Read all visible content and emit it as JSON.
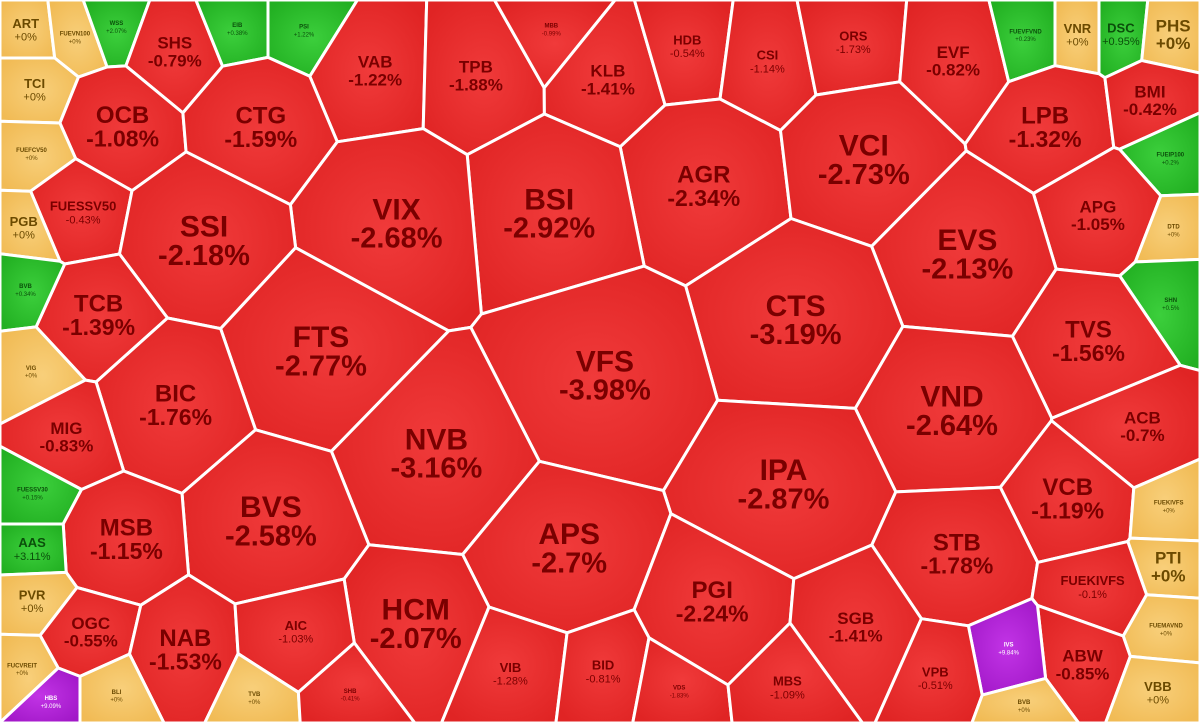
{
  "chart_data": {
    "type": "heatmap",
    "title": "",
    "colors": {
      "down": "#e82b2b",
      "down_text": "#7a0000",
      "flat": "#f5c565",
      "flat_text": "#6b4a00",
      "up": "#2bc22b",
      "up_text": "#0b4f0b",
      "ceiling": "#b41fd9",
      "ceiling_text": "#ffffff"
    },
    "cells": [
      {
        "ticker": "ART",
        "change": "+0%",
        "value": 0,
        "status": "flat",
        "size": "s"
      },
      {
        "ticker": "FUEVN100",
        "change": "+0%",
        "value": 0,
        "status": "flat",
        "size": "xs"
      },
      {
        "ticker": "WSS",
        "change": "+2.07%",
        "value": 2.07,
        "status": "up",
        "size": "xs"
      },
      {
        "ticker": "SHS",
        "change": "-0.79%",
        "value": -0.79,
        "status": "down",
        "size": "m"
      },
      {
        "ticker": "EIB",
        "change": "+0.38%",
        "value": 0.38,
        "status": "up",
        "size": "xs"
      },
      {
        "ticker": "PSI",
        "change": "+1.22%",
        "value": 1.22,
        "status": "up",
        "size": "xs"
      },
      {
        "ticker": "VAB",
        "change": "-1.22%",
        "value": -1.22,
        "status": "down",
        "size": "m"
      },
      {
        "ticker": "TPB",
        "change": "-1.88%",
        "value": -1.88,
        "status": "down",
        "size": "m"
      },
      {
        "ticker": "MBB",
        "change": "-0.99%",
        "value": -0.99,
        "status": "down",
        "size": "xs"
      },
      {
        "ticker": "KLB",
        "change": "-1.41%",
        "value": -1.41,
        "status": "down",
        "size": "m"
      },
      {
        "ticker": "HDB",
        "change": "-0.54%",
        "value": -0.54,
        "status": "down",
        "size": "s"
      },
      {
        "ticker": "CSI",
        "change": "-1.14%",
        "value": -1.14,
        "status": "down",
        "size": "s"
      },
      {
        "ticker": "ORS",
        "change": "-1.73%",
        "value": -1.73,
        "status": "down",
        "size": "s"
      },
      {
        "ticker": "EVF",
        "change": "-0.82%",
        "value": -0.82,
        "status": "down",
        "size": "m"
      },
      {
        "ticker": "FUEVFVND",
        "change": "+0.23%",
        "value": 0.23,
        "status": "up",
        "size": "xs"
      },
      {
        "ticker": "VNR",
        "change": "+0%",
        "value": 0,
        "status": "flat",
        "size": "s"
      },
      {
        "ticker": "DSC",
        "change": "+0.95%",
        "value": 0.95,
        "status": "up",
        "size": "s"
      },
      {
        "ticker": "PHS",
        "change": "+0%",
        "value": 0,
        "status": "flat",
        "size": "m"
      },
      {
        "ticker": "TCI",
        "change": "+0%",
        "value": 0,
        "status": "flat",
        "size": "s"
      },
      {
        "ticker": "OCB",
        "change": "-1.08%",
        "value": -1.08,
        "status": "down",
        "size": "l"
      },
      {
        "ticker": "CTG",
        "change": "-1.59%",
        "value": -1.59,
        "status": "down",
        "size": "l"
      },
      {
        "ticker": "AGR",
        "change": "-2.34%",
        "value": -2.34,
        "status": "down",
        "size": "l"
      },
      {
        "ticker": "VCI",
        "change": "-2.73%",
        "value": -2.73,
        "status": "down",
        "size": "xl"
      },
      {
        "ticker": "LPB",
        "change": "-1.32%",
        "value": -1.32,
        "status": "down",
        "size": "l"
      },
      {
        "ticker": "BMI",
        "change": "-0.42%",
        "value": -0.42,
        "status": "down",
        "size": "m"
      },
      {
        "ticker": "FUEFCV50",
        "change": "+0%",
        "value": 0,
        "status": "flat",
        "size": "xs"
      },
      {
        "ticker": "BSI",
        "change": "-2.92%",
        "value": -2.92,
        "status": "down",
        "size": "xl"
      },
      {
        "ticker": "FUEIP100",
        "change": "+0.2%",
        "value": 0.2,
        "status": "up",
        "size": "xs"
      },
      {
        "ticker": "FUESSV50",
        "change": "-0.43%",
        "value": -0.43,
        "status": "down",
        "size": "s"
      },
      {
        "ticker": "VIX",
        "change": "-2.68%",
        "value": -2.68,
        "status": "down",
        "size": "xl"
      },
      {
        "ticker": "APG",
        "change": "-1.05%",
        "value": -1.05,
        "status": "down",
        "size": "m"
      },
      {
        "ticker": "PGB",
        "change": "+0%",
        "value": 0,
        "status": "flat",
        "size": "s"
      },
      {
        "ticker": "SSI",
        "change": "-2.18%",
        "value": -2.18,
        "status": "down",
        "size": "xl"
      },
      {
        "ticker": "EVS",
        "change": "-2.13%",
        "value": -2.13,
        "status": "down",
        "size": "xl"
      },
      {
        "ticker": "DTD",
        "change": "+0%",
        "value": 0,
        "status": "flat",
        "size": "xs"
      },
      {
        "ticker": "SHN",
        "change": "+0.5%",
        "value": 0.5,
        "status": "up",
        "size": "xs"
      },
      {
        "ticker": "TCB",
        "change": "-1.39%",
        "value": -1.39,
        "status": "down",
        "size": "l"
      },
      {
        "ticker": "CTS",
        "change": "-3.19%",
        "value": -3.19,
        "status": "down",
        "size": "xl"
      },
      {
        "ticker": "BVB",
        "change": "+0.34%",
        "value": 0.34,
        "status": "up",
        "size": "xs"
      },
      {
        "ticker": "FTS",
        "change": "-2.77%",
        "value": -2.77,
        "status": "down",
        "size": "xl"
      },
      {
        "ticker": "TVS",
        "change": "-1.56%",
        "value": -1.56,
        "status": "down",
        "size": "l"
      },
      {
        "ticker": "VFS",
        "change": "-3.98%",
        "value": -3.98,
        "status": "down",
        "size": "xl"
      },
      {
        "ticker": "VIG",
        "change": "+0%",
        "value": 0,
        "status": "flat",
        "size": "xs"
      },
      {
        "ticker": "BIC",
        "change": "-1.76%",
        "value": -1.76,
        "status": "down",
        "size": "l"
      },
      {
        "ticker": "VND",
        "change": "-2.64%",
        "value": -2.64,
        "status": "down",
        "size": "xl"
      },
      {
        "ticker": "MIG",
        "change": "-0.83%",
        "value": -0.83,
        "status": "down",
        "size": "m"
      },
      {
        "ticker": "ACB",
        "change": "-0.7%",
        "value": -0.7,
        "status": "down",
        "size": "m"
      },
      {
        "ticker": "NVB",
        "change": "-3.16%",
        "value": -3.16,
        "status": "down",
        "size": "xl"
      },
      {
        "ticker": "IPA",
        "change": "-2.87%",
        "value": -2.87,
        "status": "down",
        "size": "xl"
      },
      {
        "ticker": "FUESSV30",
        "change": "+0.15%",
        "value": 0.15,
        "status": "up",
        "size": "xs"
      },
      {
        "ticker": "VCB",
        "change": "-1.19%",
        "value": -1.19,
        "status": "down",
        "size": "l"
      },
      {
        "ticker": "BVS",
        "change": "-2.58%",
        "value": -2.58,
        "status": "down",
        "size": "xl"
      },
      {
        "ticker": "MSB",
        "change": "-1.15%",
        "value": -1.15,
        "status": "down",
        "size": "l"
      },
      {
        "ticker": "FUEKIVFS",
        "change": "+0%",
        "value": 0,
        "status": "flat",
        "size": "xs"
      },
      {
        "ticker": "AAS",
        "change": "+3.11%",
        "value": 3.11,
        "status": "up",
        "size": "s"
      },
      {
        "ticker": "APS",
        "change": "-2.7%",
        "value": -2.7,
        "status": "down",
        "size": "xl"
      },
      {
        "ticker": "STB",
        "change": "-1.78%",
        "value": -1.78,
        "status": "down",
        "size": "l"
      },
      {
        "ticker": "PTI",
        "change": "+0%",
        "value": 0,
        "status": "flat",
        "size": "m"
      },
      {
        "ticker": "PVR",
        "change": "+0%",
        "value": 0,
        "status": "flat",
        "size": "s"
      },
      {
        "ticker": "FUEKIVFS",
        "change": "-0.1%",
        "value": -0.1,
        "status": "down",
        "size": "s"
      },
      {
        "ticker": "OGC",
        "change": "-0.55%",
        "value": -0.55,
        "status": "down",
        "size": "m"
      },
      {
        "ticker": "HCM",
        "change": "-2.07%",
        "value": -2.07,
        "status": "down",
        "size": "xl"
      },
      {
        "ticker": "PGI",
        "change": "-2.24%",
        "value": -2.24,
        "status": "down",
        "size": "l"
      },
      {
        "ticker": "FUEMAVND",
        "change": "+0%",
        "value": 0,
        "status": "flat",
        "size": "xs"
      },
      {
        "ticker": "NAB",
        "change": "-1.53%",
        "value": -1.53,
        "status": "down",
        "size": "l"
      },
      {
        "ticker": "AIC",
        "change": "-1.03%",
        "value": -1.03,
        "status": "down",
        "size": "s"
      },
      {
        "ticker": "SGB",
        "change": "-1.41%",
        "value": -1.41,
        "status": "down",
        "size": "m"
      },
      {
        "ticker": "ABW",
        "change": "-0.85%",
        "value": -0.85,
        "status": "down",
        "size": "m"
      },
      {
        "ticker": "FUCVREIT",
        "change": "+0%",
        "value": 0,
        "status": "flat",
        "size": "xs"
      },
      {
        "ticker": "VIB",
        "change": "-1.28%",
        "value": -1.28,
        "status": "down",
        "size": "s"
      },
      {
        "ticker": "IVS",
        "change": "+9.84%",
        "value": 9.84,
        "status": "ceiling",
        "size": "xs"
      },
      {
        "ticker": "HBS",
        "change": "+9.09%",
        "value": 9.09,
        "status": "ceiling",
        "size": "xs"
      },
      {
        "ticker": "BLI",
        "change": "+0%",
        "value": 0,
        "status": "flat",
        "size": "xs"
      },
      {
        "ticker": "TVB",
        "change": "+0%",
        "value": 0,
        "status": "flat",
        "size": "xs"
      },
      {
        "ticker": "SHB",
        "change": "-0.41%",
        "value": -0.41,
        "status": "down",
        "size": "xs"
      },
      {
        "ticker": "BID",
        "change": "-0.81%",
        "value": -0.81,
        "status": "down",
        "size": "s"
      },
      {
        "ticker": "VDS",
        "change": "-1.83%",
        "value": -1.83,
        "status": "down",
        "size": "xs"
      },
      {
        "ticker": "MBS",
        "change": "-1.09%",
        "value": -1.09,
        "status": "down",
        "size": "s"
      },
      {
        "ticker": "VPB",
        "change": "-0.51%",
        "value": -0.51,
        "status": "down",
        "size": "s"
      },
      {
        "ticker": "BVB",
        "change": "+0%",
        "value": 0,
        "status": "flat",
        "size": "xs"
      },
      {
        "ticker": "VBB",
        "change": "+0%",
        "value": 0,
        "status": "flat",
        "size": "s"
      }
    ]
  }
}
